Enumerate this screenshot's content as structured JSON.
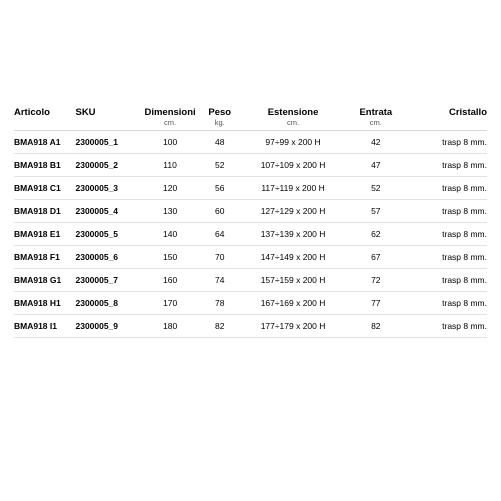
{
  "table": {
    "columns": [
      {
        "label": "Articolo",
        "sub": "",
        "width": "13%",
        "align": "left"
      },
      {
        "label": "SKU",
        "sub": "",
        "width": "14%",
        "align": "left"
      },
      {
        "label": "Dimensioni",
        "sub": "cm.",
        "width": "12%",
        "align": "center"
      },
      {
        "label": "Peso",
        "sub": "kg.",
        "width": "9%",
        "align": "center"
      },
      {
        "label": "Estensione",
        "sub": "cm.",
        "width": "22%",
        "align": "center"
      },
      {
        "label": "Entrata",
        "sub": "cm.",
        "width": "13%",
        "align": "center"
      },
      {
        "label": "Cristallo",
        "sub": "",
        "width": "17%",
        "align": "right"
      }
    ],
    "rows": [
      {
        "art": "BMA918 A1",
        "sku": "2300005_1",
        "dim": "100",
        "peso": "48",
        "est": "97÷99  x  200 H",
        "ent": "42",
        "cris": "trasp 8 mm."
      },
      {
        "art": "BMA918 B1",
        "sku": "2300005_2",
        "dim": "110",
        "peso": "52",
        "est": "107÷109 x 200 H",
        "ent": "47",
        "cris": "trasp 8 mm."
      },
      {
        "art": "BMA918 C1",
        "sku": "2300005_3",
        "dim": "120",
        "peso": "56",
        "est": "117÷119  x  200 H",
        "ent": "52",
        "cris": "trasp 8 mm."
      },
      {
        "art": "BMA918 D1",
        "sku": "2300005_4",
        "dim": "130",
        "peso": "60",
        "est": "127÷129 x 200 H",
        "ent": "57",
        "cris": "trasp 8 mm."
      },
      {
        "art": "BMA918 E1",
        "sku": "2300005_5",
        "dim": "140",
        "peso": "64",
        "est": "137÷139 x 200 H",
        "ent": "62",
        "cris": "trasp 8 mm."
      },
      {
        "art": "BMA918 F1",
        "sku": "2300005_6",
        "dim": "150",
        "peso": "70",
        "est": "147÷149 x 200 H",
        "ent": "67",
        "cris": "trasp 8 mm."
      },
      {
        "art": "BMA918 G1",
        "sku": "2300005_7",
        "dim": "160",
        "peso": "74",
        "est": "157÷159 x 200 H",
        "ent": "72",
        "cris": "trasp 8 mm."
      },
      {
        "art": "BMA918 H1",
        "sku": "2300005_8",
        "dim": "170",
        "peso": "78",
        "est": "167÷169 x 200 H",
        "ent": "77",
        "cris": "trasp 8 mm."
      },
      {
        "art": "BMA918 I1",
        "sku": "2300005_9",
        "dim": "180",
        "peso": "82",
        "est": "177÷179 x 200 H",
        "ent": "82",
        "cris": "trasp 8 mm."
      }
    ]
  },
  "style": {
    "header_fontsize": 9.5,
    "cell_fontsize": 8.5,
    "sub_fontsize": 7.5,
    "row_border_color": "#e2e2e2",
    "header_border_color": "#d9d9d9",
    "text_color": "#000000",
    "sub_color": "#555555",
    "background": "#ffffff"
  }
}
